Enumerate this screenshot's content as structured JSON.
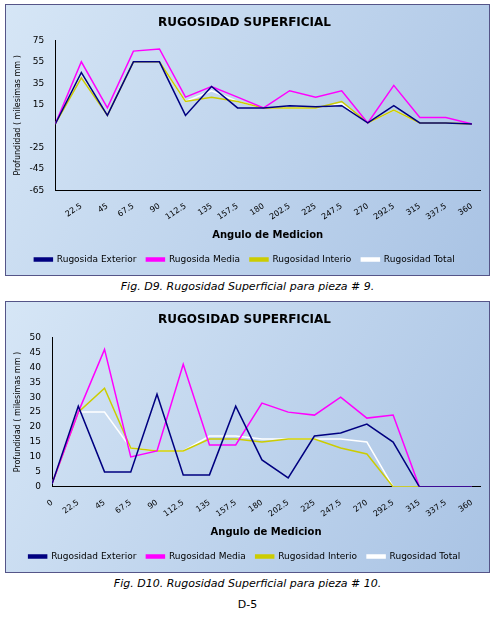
{
  "chart_data": [
    {
      "type": "line",
      "title": "RUGOSIDAD SUPERFICIAL",
      "xlabel": "Angulo de Medicion",
      "ylabel": "Profundidad ( milesimas mm )",
      "x": [
        0,
        22.5,
        45,
        67.5,
        90,
        112.5,
        135,
        157.5,
        180,
        202.5,
        225,
        247.5,
        270,
        292.5,
        315,
        337.5,
        360
      ],
      "series": [
        {
          "name": "Rugosida Exterior",
          "color": "#000080",
          "values": [
            -3,
            45,
            5,
            55,
            55,
            5,
            32,
            12,
            12,
            14,
            13,
            14,
            -2,
            14,
            -2,
            -2,
            -3
          ]
        },
        {
          "name": "Rugosida Media",
          "color": "#ff00ff",
          "values": [
            -3,
            55,
            12,
            65,
            67,
            22,
            32,
            22,
            12,
            28,
            22,
            28,
            -2,
            33,
            3,
            3,
            -3
          ]
        },
        {
          "name": "Rugosidad Interio",
          "color": "#cccc00",
          "values": [
            -3,
            40,
            5,
            55,
            55,
            18,
            22,
            18,
            12,
            12,
            12,
            18,
            -2,
            10,
            -2,
            -2,
            -3
          ]
        },
        {
          "name": "Rugosidad Total",
          "color": "#ffffff",
          "values": [
            -3,
            44,
            5,
            55,
            55,
            18,
            28,
            18,
            12,
            12,
            12,
            16,
            -2,
            10,
            -2,
            -2,
            -3
          ]
        }
      ],
      "xlim": [
        0,
        367
      ],
      "ylim": [
        -65,
        75
      ],
      "xticks": [
        22.5,
        45,
        67.5,
        90,
        112.5,
        135,
        157.5,
        180,
        202.5,
        225,
        247.5,
        270,
        292.5,
        315,
        337.5,
        360
      ],
      "yticks": [
        -65,
        -45,
        -25,
        15,
        35,
        55,
        75
      ],
      "grid": false,
      "legend": "bottom",
      "annotations": [
        "Fig. D9. Rugosidad Superficial para pieza # 9."
      ]
    },
    {
      "type": "line",
      "title": "RUGOSIDAD SUPERFICIAL",
      "xlabel": "Angulo de Medicion",
      "ylabel": "Profundidad ( milesimas mm )",
      "x": [
        0,
        22.5,
        45,
        67.5,
        90,
        112.5,
        135,
        157.5,
        180,
        202.5,
        225,
        247.5,
        270,
        292.5,
        315,
        337.5,
        360
      ],
      "series": [
        {
          "name": "Rugosidad Exterior",
          "color": "#000080",
          "values": [
            1,
            27,
            5,
            5,
            31,
            4,
            4,
            27,
            9,
            3,
            17,
            18,
            21,
            15,
            0,
            0,
            0
          ]
        },
        {
          "name": "Rugosidad Media",
          "color": "#ff00ff",
          "values": [
            1,
            25,
            46,
            10,
            12,
            41,
            14,
            14,
            28,
            25,
            24,
            30,
            23,
            24,
            0,
            0,
            0
          ]
        },
        {
          "name": "Rugosidad Interio",
          "color": "#cccc00",
          "values": [
            1,
            25,
            33,
            13,
            12,
            12,
            16,
            16,
            15,
            16,
            16,
            13,
            11,
            0,
            0,
            0,
            0
          ]
        },
        {
          "name": "Rugosidad Total",
          "color": "#ffffff",
          "values": [
            1,
            25,
            25,
            13,
            12,
            12,
            17,
            17,
            16,
            16,
            16,
            16,
            15,
            0,
            0,
            0,
            0
          ]
        }
      ],
      "xlim": [
        0,
        367
      ],
      "ylim": [
        0,
        50
      ],
      "xticks": [
        0,
        22.5,
        45,
        67.5,
        90,
        112.5,
        135,
        157.5,
        180,
        202.5,
        225,
        247.5,
        270,
        292.5,
        315,
        337.5,
        360
      ],
      "yticks": [
        0,
        5,
        10,
        15,
        20,
        25,
        30,
        35,
        40,
        45,
        50
      ],
      "grid": false,
      "legend": "bottom",
      "annotations": [
        "Fig. D10. Rugosidad Superficial para pieza # 10.",
        "D-5"
      ]
    }
  ]
}
